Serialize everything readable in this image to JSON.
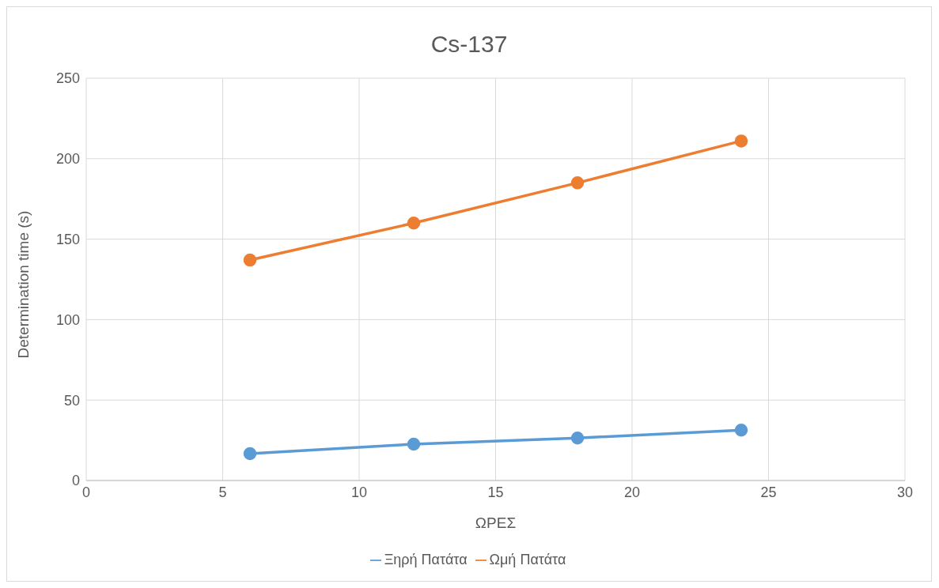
{
  "chart_data": {
    "type": "line",
    "title": "Cs-137",
    "xlabel": "ΩΡΕΣ",
    "ylabel": "Determination time (s)",
    "x": [
      6,
      12,
      18,
      24
    ],
    "series": [
      {
        "name": "Ξηρή Πατάτα",
        "color": "#5b9bd5",
        "values": [
          16.7,
          22.6,
          26.4,
          31.3
        ]
      },
      {
        "name": "Ωμή Πατάτα",
        "color": "#ed7d31",
        "values": [
          137,
          160,
          185,
          211
        ]
      }
    ],
    "xlim": [
      0,
      30
    ],
    "xticks": [
      0,
      5,
      10,
      15,
      20,
      25,
      30
    ],
    "ylim": [
      0,
      250
    ],
    "yticks": [
      0,
      50,
      100,
      150,
      200,
      250
    ],
    "grid": true,
    "legend": "bottom",
    "marker": "circle",
    "line_style": "solid"
  }
}
